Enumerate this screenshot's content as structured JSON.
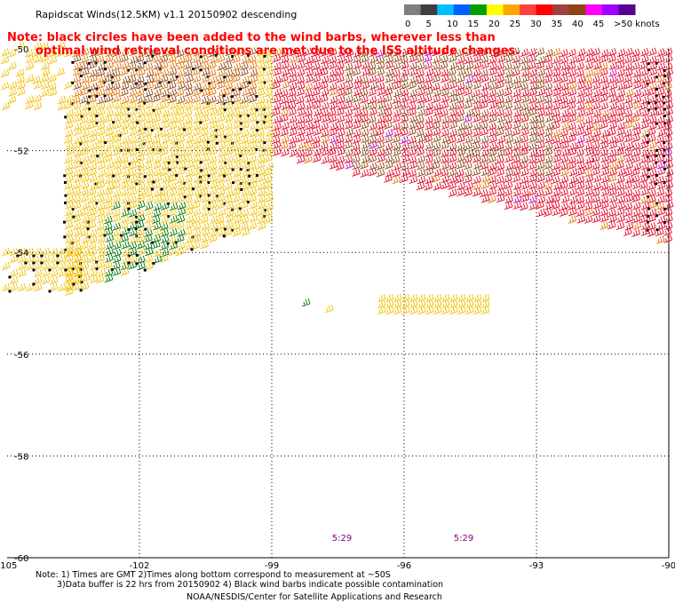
{
  "title": "Rapidscat Winds(12.5KM) v1.1 20150902 descending",
  "note": {
    "line1": "Note: black circles have been added to the wind barbs, wherever less than",
    "line2": "optimal wind retrieval conditions are met due to the ISS altitude changes."
  },
  "legend": {
    "labels": [
      "0",
      "5",
      "10",
      "15",
      "20",
      "25",
      "30",
      "35",
      "40",
      "45",
      ">50 knots"
    ],
    "colors": [
      "#7f7f7f",
      "#3f3f3f",
      "#00bfff",
      "#0060ff",
      "#00a000",
      "#ffff00",
      "#ffa500",
      "#ff4040",
      "#ff0000",
      "#a04040",
      "#8b4513",
      "#ff00ff",
      "#a000ff",
      "#5a0090"
    ]
  },
  "axes": {
    "lon_ticks": [
      "-105",
      "-102",
      "-99",
      "-96",
      "-93",
      "-90"
    ],
    "lat_ticks": [
      "-50",
      "-52",
      "-54",
      "-56",
      "-58",
      "-60"
    ]
  },
  "time_labels": [
    "5:29",
    "5:29"
  ],
  "footer": {
    "line1": "Note: 1) Times are GMT 2)Times along bottom correspond to measurement at ~50S",
    "line2": "3)Data buffer is 22 hrs from 20150902 4) Black wind barbs indicate possible contamination",
    "line3": "NOAA/NESDIS/Center for Satellite Applications and Research"
  },
  "barb_colors": {
    "yellow": "#f0c000",
    "orange": "#e07000",
    "red": "#e00020",
    "brown": "#8b4513",
    "green": "#007000",
    "magenta": "#c000c0",
    "black": "#000000"
  }
}
